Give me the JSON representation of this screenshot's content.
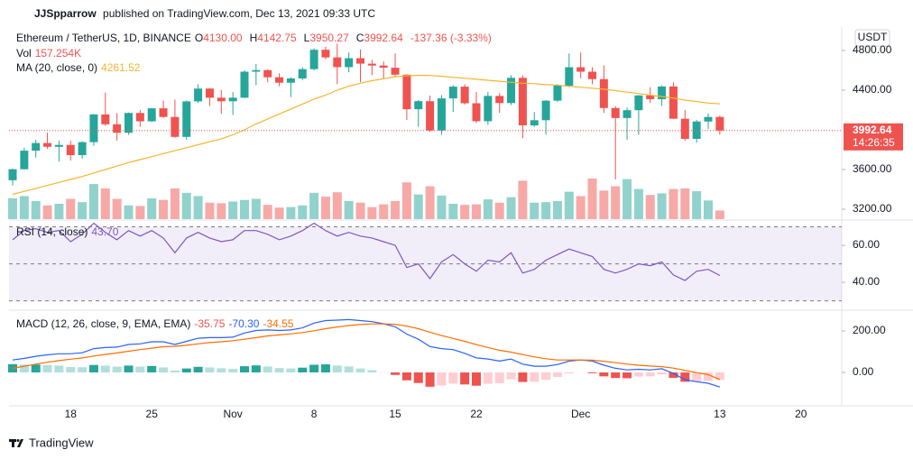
{
  "chart_data": {
    "type": "candlestick",
    "author": "JJSpparrow",
    "published": "published on TradingView.com, Dec 13, 2021 09:33 UTC",
    "title": "Ethereum / TetherUS, 1D, BINANCE",
    "ohlc_legend": [
      {
        "key": "O",
        "value": "4130.00"
      },
      {
        "key": "H",
        "value": "4142.75"
      },
      {
        "key": "L",
        "value": "3950.27"
      },
      {
        "key": "C",
        "value": "3992.64"
      }
    ],
    "change": "-137.36 (-3.33%)",
    "currency": "USDT",
    "footer": "TradingView",
    "up_color": "#26a69a",
    "down_color": "#ef5350",
    "categories": [
      null,
      null,
      null,
      null,
      null,
      "18",
      null,
      null,
      null,
      null,
      null,
      null,
      "25",
      null,
      null,
      null,
      null,
      null,
      null,
      "Nov",
      null,
      null,
      null,
      null,
      null,
      null,
      "8",
      null,
      null,
      null,
      null,
      null,
      null,
      "15",
      null,
      null,
      null,
      null,
      null,
      null,
      "22",
      null,
      null,
      null,
      null,
      null,
      null,
      null,
      null,
      "Dec",
      null,
      null,
      null,
      null,
      null,
      null,
      null,
      null,
      null,
      null,
      null,
      "13",
      null,
      null,
      null,
      null,
      null,
      null,
      "20",
      null,
      null,
      null
    ],
    "open": [
      3492,
      3603,
      3790,
      3867,
      3829,
      3848,
      3745,
      3876,
      4155,
      4056,
      3970,
      4170,
      4086,
      4217,
      4130,
      3929,
      4287,
      4416,
      4324,
      4288,
      4324,
      4586,
      4602,
      4530,
      4475,
      4518,
      4612,
      4807,
      4730,
      4632,
      4722,
      4667,
      4648,
      4626,
      4556,
      4208,
      4289,
      3994,
      4317,
      4435,
      4268,
      4087,
      4342,
      4270,
      4524,
      4045,
      4097,
      4294,
      4445,
      4631,
      4586,
      4511,
      4220,
      4119,
      4198,
      4347,
      4309,
      4437,
      4112,
      3909,
      4084,
      4130,
      null,
      null,
      null,
      null,
      null,
      null,
      null,
      null,
      null,
      null
    ],
    "high": [
      3610,
      3820,
      3900,
      3972,
      3890,
      3890,
      3885,
      4160,
      4375,
      4170,
      4175,
      4200,
      4220,
      4295,
      4305,
      4295,
      4460,
      4420,
      4400,
      4380,
      4600,
      4665,
      4610,
      4570,
      4530,
      4630,
      4820,
      4838,
      4868,
      4780,
      4810,
      4705,
      4690,
      4770,
      4560,
      4300,
      4345,
      4350,
      4450,
      4460,
      4380,
      4380,
      4370,
      4550,
      4550,
      4180,
      4300,
      4460,
      4770,
      4780,
      4630,
      4650,
      4240,
      4225,
      4350,
      4430,
      4448,
      4480,
      4200,
      4100,
      4165,
      4142.75,
      null,
      null,
      null,
      null,
      null,
      null,
      null,
      null,
      null,
      null
    ],
    "low": [
      3440,
      3600,
      3720,
      3810,
      3680,
      3690,
      3710,
      3840,
      4040,
      3890,
      3950,
      4030,
      4080,
      4120,
      3920,
      3900,
      4270,
      4240,
      4160,
      4150,
      4320,
      4450,
      4480,
      4440,
      4330,
      4500,
      4600,
      4710,
      4460,
      4580,
      4480,
      4550,
      4510,
      4530,
      4100,
      4030,
      3980,
      3950,
      4180,
      4255,
      4070,
      4050,
      4170,
      4250,
      3915,
      4030,
      3950,
      4280,
      4430,
      4520,
      4460,
      4170,
      3500,
      3900,
      3950,
      4270,
      4240,
      4110,
      3890,
      3870,
      4010,
      3950.27,
      null,
      null,
      null,
      null,
      null,
      null,
      null,
      null,
      null,
      null
    ],
    "close": [
      3603,
      3790,
      3867,
      3829,
      3848,
      3745,
      3876,
      4155,
      4056,
      3970,
      4170,
      4086,
      4217,
      4130,
      3929,
      4287,
      4416,
      4324,
      4288,
      4324,
      4586,
      4602,
      4530,
      4475,
      4518,
      4612,
      4807,
      4730,
      4632,
      4722,
      4667,
      4648,
      4626,
      4556,
      4208,
      4289,
      3994,
      4317,
      4435,
      4268,
      4087,
      4342,
      4270,
      4524,
      4045,
      4097,
      4294,
      4445,
      4631,
      4586,
      4511,
      4220,
      4119,
      4198,
      4347,
      4309,
      4437,
      4112,
      3909,
      4084,
      4130,
      3992.64,
      null,
      null,
      null,
      null,
      null,
      null,
      null,
      null,
      null,
      null
    ],
    "ylim": [
      3100,
      5036
    ],
    "yticks": [
      {
        "value": 4800,
        "label": "4800.00"
      },
      {
        "value": 4400,
        "label": "4400.00"
      },
      {
        "value": 3600,
        "label": "3600.00"
      },
      {
        "value": 3200,
        "label": "3200.00"
      }
    ],
    "grid": false,
    "last_price_label": "3992.64",
    "countdown": "14:26:35",
    "volume": {
      "name": "Vol",
      "value_label": "157.254K",
      "up_color": "rgba(38,166,154,0.5)",
      "down_color": "rgba(239,83,80,0.5)",
      "values": [
        380,
        420,
        330,
        250,
        280,
        370,
        310,
        640,
        560,
        370,
        250,
        240,
        380,
        350,
        560,
        480,
        420,
        300,
        290,
        320,
        350,
        370,
        260,
        210,
        220,
        250,
        480,
        410,
        490,
        330,
        300,
        220,
        270,
        330,
        670,
        450,
        600,
        430,
        280,
        260,
        270,
        360,
        300,
        400,
        700,
        300,
        310,
        330,
        500,
        420,
        740,
        520,
        600,
        730,
        550,
        440,
        470,
        550,
        560,
        510,
        340,
        157.254,
        null,
        null,
        null,
        null,
        null,
        null,
        null,
        null,
        null,
        null
      ]
    },
    "ma": {
      "name": "MA (20, close, 0)",
      "value_label": "4261.52",
      "color": "#f5b52e",
      "values": [
        3350,
        3380,
        3410,
        3440,
        3470,
        3500,
        3530,
        3565,
        3600,
        3635,
        3670,
        3700,
        3730,
        3760,
        3790,
        3820,
        3850,
        3880,
        3910,
        3950,
        4000,
        4060,
        4110,
        4160,
        4210,
        4260,
        4310,
        4350,
        4400,
        4440,
        4470,
        4495,
        4515,
        4535,
        4545,
        4550,
        4548,
        4540,
        4530,
        4520,
        4510,
        4500,
        4490,
        4480,
        4470,
        4465,
        4455,
        4450,
        4440,
        4430,
        4420,
        4410,
        4395,
        4380,
        4365,
        4350,
        4335,
        4320,
        4300,
        4285,
        4270,
        4261.52,
        null,
        null,
        null,
        null,
        null,
        null,
        null,
        null,
        null,
        null
      ]
    },
    "rsi": {
      "name": "RSI (14, close)",
      "value_label": "43.70",
      "color": "#7e57c2",
      "band_color": "rgba(126,87,194,0.1)",
      "ylim": [
        25.4,
        73.2
      ],
      "yticks": [
        {
          "value": 60,
          "label": "60.00"
        },
        {
          "value": 40,
          "label": "40.00"
        }
      ],
      "levels": [
        70,
        50,
        30
      ],
      "values": [
        63,
        68,
        69,
        67,
        68,
        62,
        66,
        72,
        67,
        63,
        68,
        65,
        68,
        64,
        56,
        64,
        67,
        64,
        62,
        63,
        68,
        68,
        66,
        63,
        65,
        68,
        72,
        68,
        65,
        67,
        65,
        64,
        62,
        60,
        48,
        50,
        42,
        51,
        55,
        50,
        46,
        52,
        51,
        56,
        45,
        47,
        52,
        55,
        58,
        56,
        54,
        47,
        45,
        47,
        50,
        49,
        51,
        44,
        41,
        46,
        47,
        43.7,
        null,
        null,
        null,
        null,
        null,
        null,
        null,
        null,
        null,
        null
      ]
    },
    "macd": {
      "name": "MACD (12, 26, close, 9, EMA, EMA)",
      "ylim": [
        -160.9,
        295.7
      ],
      "yticks": [
        {
          "value": 200,
          "label": "200.00"
        },
        {
          "value": 0,
          "label": "0.00"
        }
      ],
      "hist_colors": {
        "up_strong": "#26a69a",
        "up_weak": "#b2dfdb",
        "down_strong": "#ef5350",
        "down_weak": "#ffcdd2"
      },
      "histogram": {
        "value_label": "-35.75",
        "color": "#ef5350",
        "values": [
          40,
          38,
          38,
          36,
          33,
          26,
          25,
          36,
          33,
          28,
          33,
          28,
          31,
          24,
          9,
          19,
          27,
          24,
          20,
          17,
          30,
          34,
          29,
          21,
          19,
          23,
          37,
          39,
          33,
          29,
          19,
          11,
          1,
          -12,
          -38,
          -51,
          -69,
          -63,
          -54,
          -58,
          -64,
          -55,
          -52,
          -33,
          -46,
          -45,
          -36,
          -22,
          -5,
          0,
          -4,
          -19,
          -27,
          -28,
          -20,
          -19,
          -10,
          -26,
          -45,
          -44,
          -41,
          -35.75,
          null,
          null,
          null,
          null,
          null,
          null,
          null,
          null,
          null,
          null
        ]
      },
      "macd_line": {
        "value_label": "-70.30",
        "color": "#2962ff",
        "values": [
          60,
          68,
          78,
          85,
          90,
          90,
          95,
          115,
          120,
          122,
          135,
          138,
          148,
          148,
          135,
          150,
          165,
          168,
          168,
          170,
          190,
          202,
          205,
          202,
          205,
          215,
          238,
          250,
          252,
          255,
          250,
          245,
          235,
          220,
          185,
          160,
          125,
          115,
          110,
          92,
          70,
          65,
          55,
          65,
          40,
          30,
          30,
          38,
          55,
          60,
          55,
          35,
          20,
          12,
          15,
          12,
          18,
          -5,
          -35,
          -45,
          -52,
          -70.3,
          null,
          null,
          null,
          null,
          null,
          null,
          null,
          null,
          null,
          null
        ]
      },
      "signal": {
        "value_label": "-34.55",
        "color": "#ff6d00",
        "values": [
          20,
          30,
          40,
          49,
          57,
          64,
          70,
          79,
          87,
          94,
          102,
          110,
          117,
          124,
          126,
          131,
          138,
          144,
          148,
          153,
          160,
          168,
          176,
          181,
          186,
          192,
          201,
          211,
          219,
          226,
          231,
          234,
          234,
          232,
          223,
          211,
          194,
          178,
          164,
          150,
          134,
          120,
          107,
          98,
          86,
          75,
          66,
          60,
          60,
          60,
          59,
          54,
          47,
          40,
          35,
          31,
          28,
          21,
          10,
          -1,
          -11,
          -34.55,
          null,
          null,
          null,
          null,
          null,
          null,
          null,
          null,
          null,
          null
        ]
      }
    }
  }
}
